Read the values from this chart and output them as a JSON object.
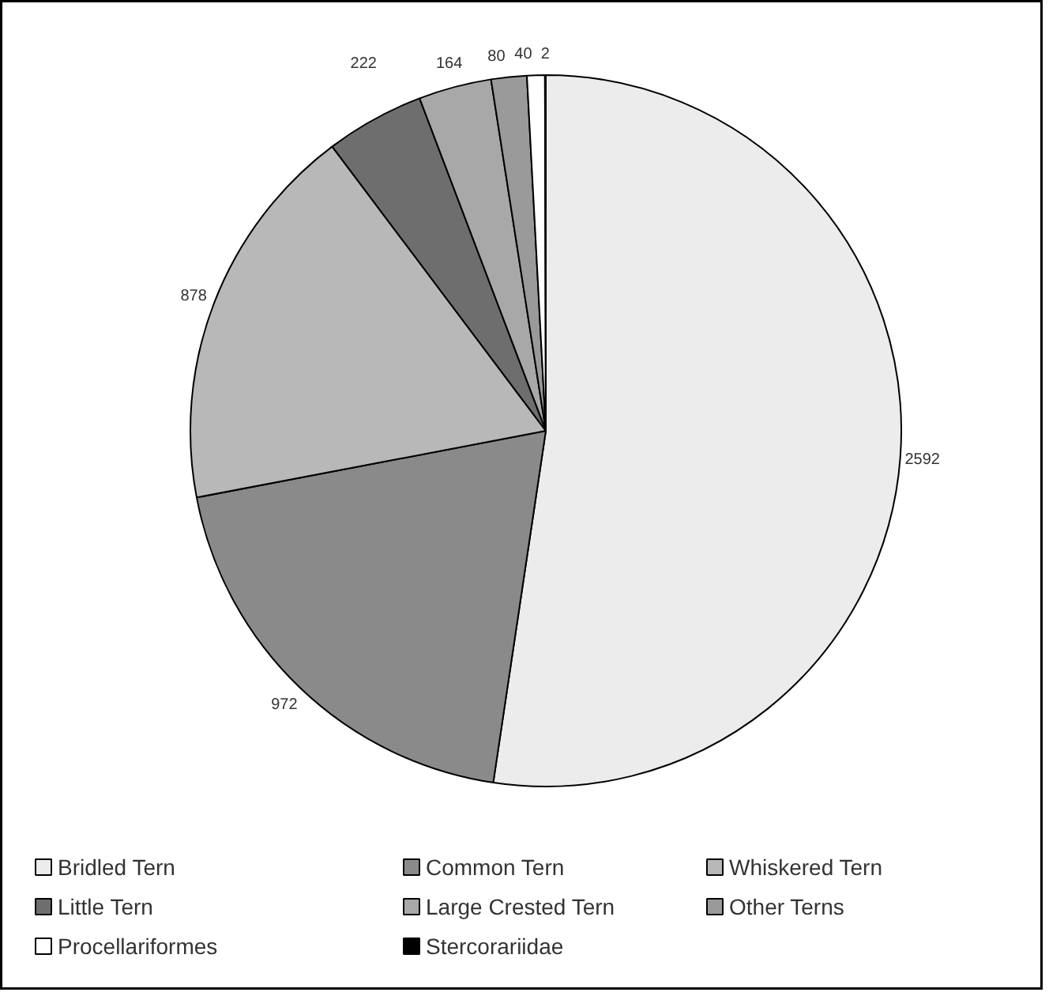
{
  "chart_data": {
    "type": "pie",
    "categories": [
      "Bridled Tern",
      "Common Tern",
      "Whiskered Tern",
      "Little Tern",
      "Large Crested Tern",
      "Other Terns",
      "Procellariformes",
      "Stercorariidae"
    ],
    "values": [
      2592,
      972,
      878,
      222,
      164,
      80,
      40,
      2
    ],
    "colors": [
      "#ececec",
      "#8a8a8a",
      "#b8b8b8",
      "#6e6e6e",
      "#a8a8a8",
      "#9a9a9a",
      "#ffffff",
      "#000000"
    ],
    "data_labels": true,
    "legend": "bottom"
  }
}
